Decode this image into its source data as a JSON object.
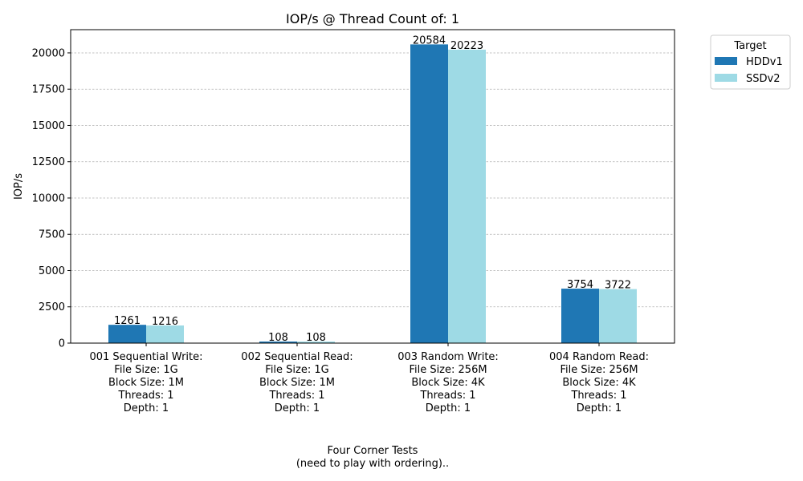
{
  "chart_data": {
    "type": "bar",
    "title": "IOP/s @ Thread Count of: 1",
    "xlabel_lines": [
      "Four Corner Tests",
      "(need to play with ordering).."
    ],
    "ylabel": "IOP/s",
    "ylim": [
      0,
      21600
    ],
    "yticks": [
      0,
      2500,
      5000,
      7500,
      10000,
      12500,
      15000,
      17500,
      20000
    ],
    "grid": "y-dashed",
    "legend_title": "Target",
    "legend_position": "outside-top-right",
    "categories": [
      [
        "001 Sequential Write:",
        "File Size: 1G",
        "Block Size: 1M",
        "Threads: 1",
        "Depth: 1"
      ],
      [
        "002 Sequential Read:",
        "File Size: 1G",
        "Block Size: 1M",
        "Threads: 1",
        "Depth: 1"
      ],
      [
        "003 Random Write:",
        "File Size: 256M",
        "Block Size: 4K",
        "Threads: 1",
        "Depth: 1"
      ],
      [
        "004 Random Read:",
        "File Size: 256M",
        "Block Size: 4K",
        "Threads: 1",
        "Depth: 1"
      ]
    ],
    "series": [
      {
        "name": "HDDv1",
        "color": "#1f77b4",
        "values": [
          1261,
          108,
          20584,
          3754
        ]
      },
      {
        "name": "SSDv2",
        "color": "#9edae5",
        "values": [
          1216,
          108,
          20223,
          3722
        ]
      }
    ]
  }
}
